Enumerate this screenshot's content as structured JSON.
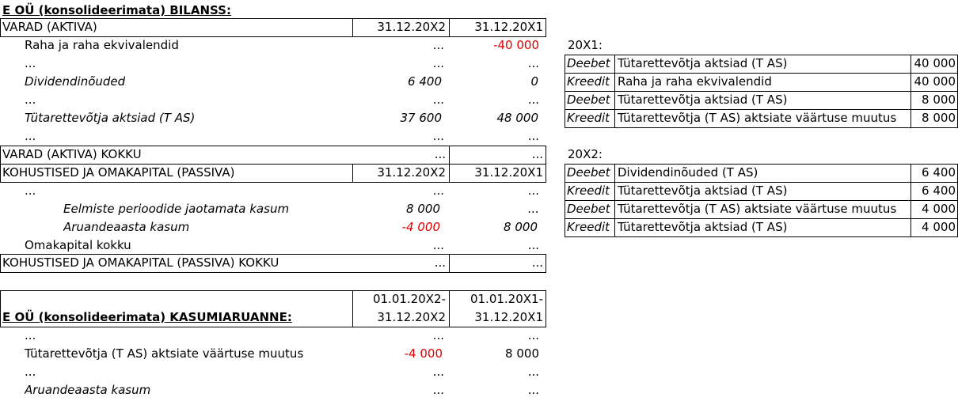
{
  "balance": {
    "title": "E OÜ (konsolideerimata) BILANSS:",
    "assets_header": {
      "label": "VARAD (AKTIVA)",
      "col1": "31.12.20X2",
      "col2": "31.12.20X1"
    },
    "asset_rows": [
      {
        "label": "Raha ja raha ekvivalendid",
        "v1": "...",
        "v2": "-40 000"
      },
      {
        "label": "...",
        "v1": "...",
        "v2": "..."
      },
      {
        "label": "Dividendinõuded",
        "v1": "6 400",
        "v2": "0"
      },
      {
        "label": "...",
        "v1": "...",
        "v2": "..."
      },
      {
        "label": "Tütarettevõtja aktsiad (T AS)",
        "v1": "37 600",
        "v2": "48 000"
      },
      {
        "label": "...",
        "v1": "...",
        "v2": "..."
      }
    ],
    "assets_total": {
      "label": "VARAD (AKTIVA) KOKKU",
      "v1": "...",
      "v2": "..."
    },
    "liab_header": {
      "label": "KOHUSTISED JA OMAKAPITAL (PASSIVA)",
      "col1": "31.12.20X2",
      "col2": "31.12.20X1"
    },
    "liab_rows": [
      {
        "label": "...",
        "v1": "...",
        "v2": "..."
      },
      {
        "label": "Eelmiste perioodide jaotamata kasum",
        "v1": "8 000",
        "v2": "..."
      },
      {
        "label": "Aruandeaasta kasum",
        "v1": "-4 000",
        "v2": "8 000"
      },
      {
        "label": "Omakapital kokku",
        "v1": "...",
        "v2": "..."
      }
    ],
    "liab_total": {
      "label": "KOHUSTISED JA OMAKAPITAL (PASSIVA) KOKKU",
      "v1": "...",
      "v2": "..."
    }
  },
  "income": {
    "title": "E OÜ (konsolideerimata) KASUMIARUANNE:",
    "col1_line1": "01.01.20X2-",
    "col1_line2": "31.12.20X2",
    "col2_line1": "01.01.20X1-",
    "col2_line2": "31.12.20X1",
    "rows": [
      {
        "label": "...",
        "v1": "...",
        "v2": "..."
      },
      {
        "label": "Tütarettevõtja (T AS) aktsiate väärtuse muutus",
        "v1": "-4 000",
        "v2": "8 000"
      },
      {
        "label": "...",
        "v1": "...",
        "v2": "..."
      },
      {
        "label": "Aruandeaasta kasum",
        "v1": "...",
        "v2": "..."
      }
    ]
  },
  "entries_x1": {
    "title": "20X1:",
    "rows": [
      {
        "type": "Deebet",
        "account": "Tütarettevõtja aktsiad (T AS)",
        "amount": "40 000"
      },
      {
        "type": "Kreedit",
        "account": "Raha ja raha ekvivalendid",
        "amount": "40 000"
      },
      {
        "type": "Deebet",
        "account": "Tütarettevõtja aktsiad (T AS)",
        "amount": "8 000"
      },
      {
        "type": "Kreedit",
        "account": "Tütarettevõtja (T AS) aktsiate väärtuse muutus",
        "amount": "8 000"
      }
    ]
  },
  "entries_x2": {
    "title": "20X2:",
    "rows": [
      {
        "type": "Deebet",
        "account": "Dividendinõuded (T AS)",
        "amount": "6 400"
      },
      {
        "type": "Kreedit",
        "account": "Tütarettevõtja aktsiad (T AS)",
        "amount": "6 400"
      },
      {
        "type": "Deebet",
        "account": "Tütarettevõtja (T AS) aktsiate väärtuse muutus",
        "amount": "4 000"
      },
      {
        "type": "Kreedit",
        "account": "Tütarettevõtja aktsiad (T AS)",
        "amount": "4 000"
      }
    ]
  },
  "colors": {
    "negative": "#e00000",
    "text": "#000000"
  }
}
